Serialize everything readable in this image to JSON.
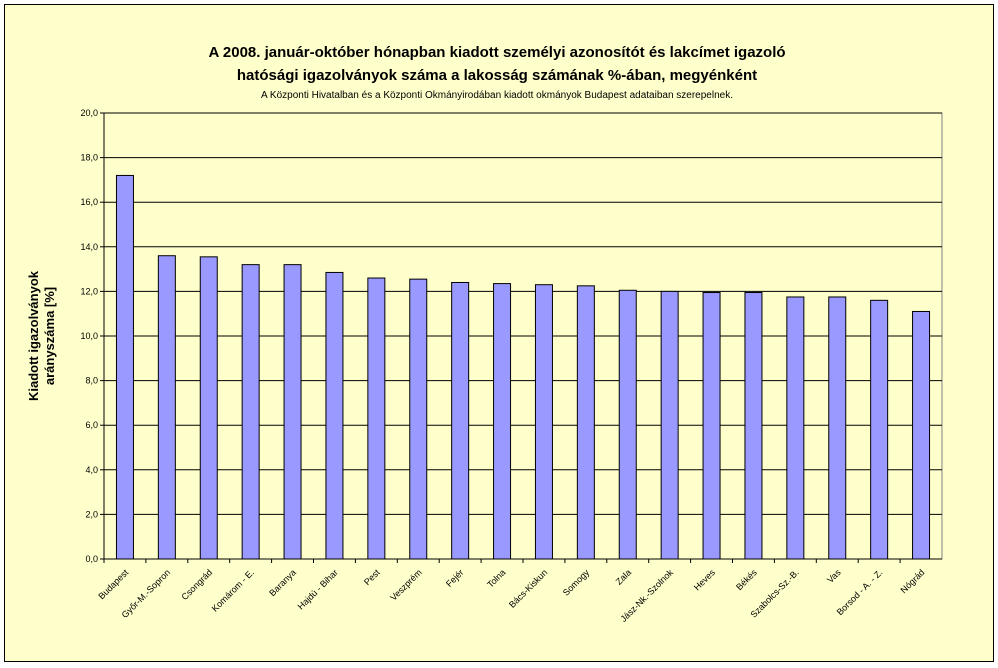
{
  "chart_data": {
    "type": "bar",
    "title_line1": "A 2008. január-október hónapban kiadott személyi azonosítót és lakcímet igazoló",
    "title_line2": "hatósági igazolványok száma a lakosság  számának %-ában, megyénként",
    "subtitle": "A Központi Hivatalban és a Központi Okmányirodában kiadott okmányok Budapest adataiban szerepelnek.",
    "ylabel_line1": "Kiadott igazolványok",
    "ylabel_line2": "arányszáma [%]",
    "xlabel": "",
    "ylim": [
      0,
      20
    ],
    "yticks": [
      "0,0",
      "2,0",
      "4,0",
      "6,0",
      "8,0",
      "10,0",
      "12,0",
      "14,0",
      "16,0",
      "18,0",
      "20,0"
    ],
    "grid": true,
    "categories": [
      "Budapest",
      "Győr-M.-Sopron",
      "Csongrád",
      "Komárom - E.",
      "Baranya",
      "Hajdú - Bihar",
      "Pest",
      "Veszprém",
      "Fejér",
      "Tolna",
      "Bács-Kiskun",
      "Somogy",
      "Zala",
      "Jász-Nk.-Szolnok",
      "Heves",
      "Békés",
      "Szabolcs-Sz.-B.",
      "Vas",
      "Borsod - A. - Z.",
      "Nógrád"
    ],
    "values": [
      17.2,
      13.6,
      13.55,
      13.2,
      13.2,
      12.85,
      12.6,
      12.55,
      12.4,
      12.35,
      12.3,
      12.25,
      12.05,
      12.0,
      11.95,
      11.95,
      11.75,
      11.75,
      11.6,
      11.1
    ],
    "colors": {
      "bar": "#9999ff",
      "plot_bg": "#ffffcc",
      "grid": "#000000",
      "frame_bg": "#ffffcc"
    }
  }
}
